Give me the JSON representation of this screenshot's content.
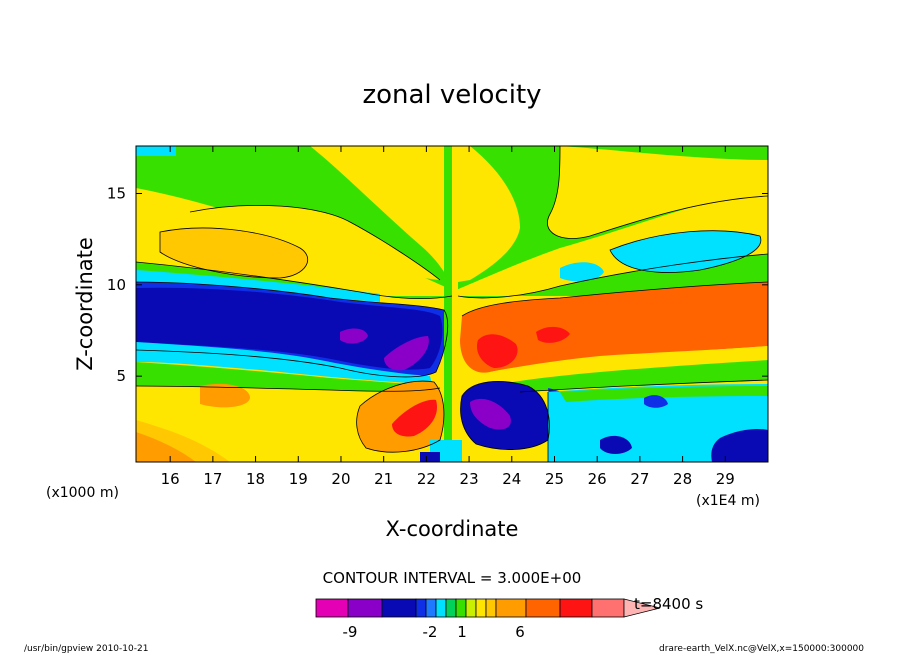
{
  "chart_data": {
    "type": "heatmap",
    "title": "zonal velocity",
    "xlabel": "X-coordinate",
    "ylabel": "Z-coordinate",
    "x_unit": "(x1E4 m)",
    "y_unit": "(x1000 m)",
    "xlim": [
      15.2,
      30.0
    ],
    "ylim": [
      0.3,
      17.6
    ],
    "x_ticks": [
      "16",
      "17",
      "18",
      "19",
      "20",
      "21",
      "22",
      "23",
      "24",
      "25",
      "26",
      "27",
      "28",
      "29"
    ],
    "y_ticks": [
      "5",
      "10",
      "15"
    ],
    "contour_interval": "CONTOUR INTERVAL = 3.000E+00",
    "time_label": "t=8400 s",
    "colorbar": {
      "colors": [
        "#e400b4",
        "#8a00c8",
        "#0a0ab4",
        "#0e2fe6",
        "#1e7bff",
        "#00e0ff",
        "#00d25a",
        "#38e000",
        "#c8f000",
        "#ffe600",
        "#ffc800",
        "#ff9c00",
        "#ff6400",
        "#ff1414",
        "#ff7070",
        "#ffb4b4"
      ],
      "tick_labels": [
        "-9",
        "-2",
        "1",
        "6"
      ]
    },
    "regions": [
      {
        "level": 2,
        "color": "#ffe600",
        "x": [
          15.2,
          30.0
        ],
        "y": [
          0.3,
          17.6
        ]
      },
      {
        "level": -1,
        "color": "#38e000",
        "x": [
          15.2,
          30.0
        ],
        "y": [
          9.8,
          11.2
        ]
      },
      {
        "level": -1,
        "color": "#38e000",
        "x": [
          15.2,
          30.0
        ],
        "y": [
          5.0,
          6.6
        ]
      },
      {
        "level": -3,
        "color": "#0a0ab4",
        "x": [
          15.2,
          22.3
        ],
        "y": [
          6.2,
          10.0
        ]
      },
      {
        "level": 7,
        "color": "#ff6400",
        "x": [
          22.8,
          30.0
        ],
        "y": [
          6.2,
          10.0
        ]
      },
      {
        "level": -4,
        "color": "#0a0ab4",
        "x": [
          22.8,
          24.8
        ],
        "y": [
          1.0,
          4.8
        ]
      },
      {
        "level": -1,
        "color": "#00e0ff",
        "x": [
          24.8,
          30.0
        ],
        "y": [
          0.3,
          4.5
        ]
      },
      {
        "level": 5,
        "color": "#ff9c00",
        "x": [
          20.3,
          22.3
        ],
        "y": [
          1.0,
          4.5
        ]
      },
      {
        "level": 3,
        "color": "#ffc800",
        "x": [
          15.2,
          20.3
        ],
        "y": [
          0.3,
          4.5
        ]
      },
      {
        "level": 3,
        "color": "#ffc800",
        "x": [
          15.2,
          21.0
        ],
        "y": [
          11.5,
          13.3
        ]
      },
      {
        "level": -2,
        "color": "#00e0ff",
        "x": [
          24.0,
          30.0
        ],
        "y": [
          11.2,
          13.3
        ]
      }
    ],
    "annotation_footer_left": "/usr/bin/gpview  2010-10-21",
    "annotation_footer_right": "drare-earth_VelX.nc@VelX,x=150000:300000"
  }
}
